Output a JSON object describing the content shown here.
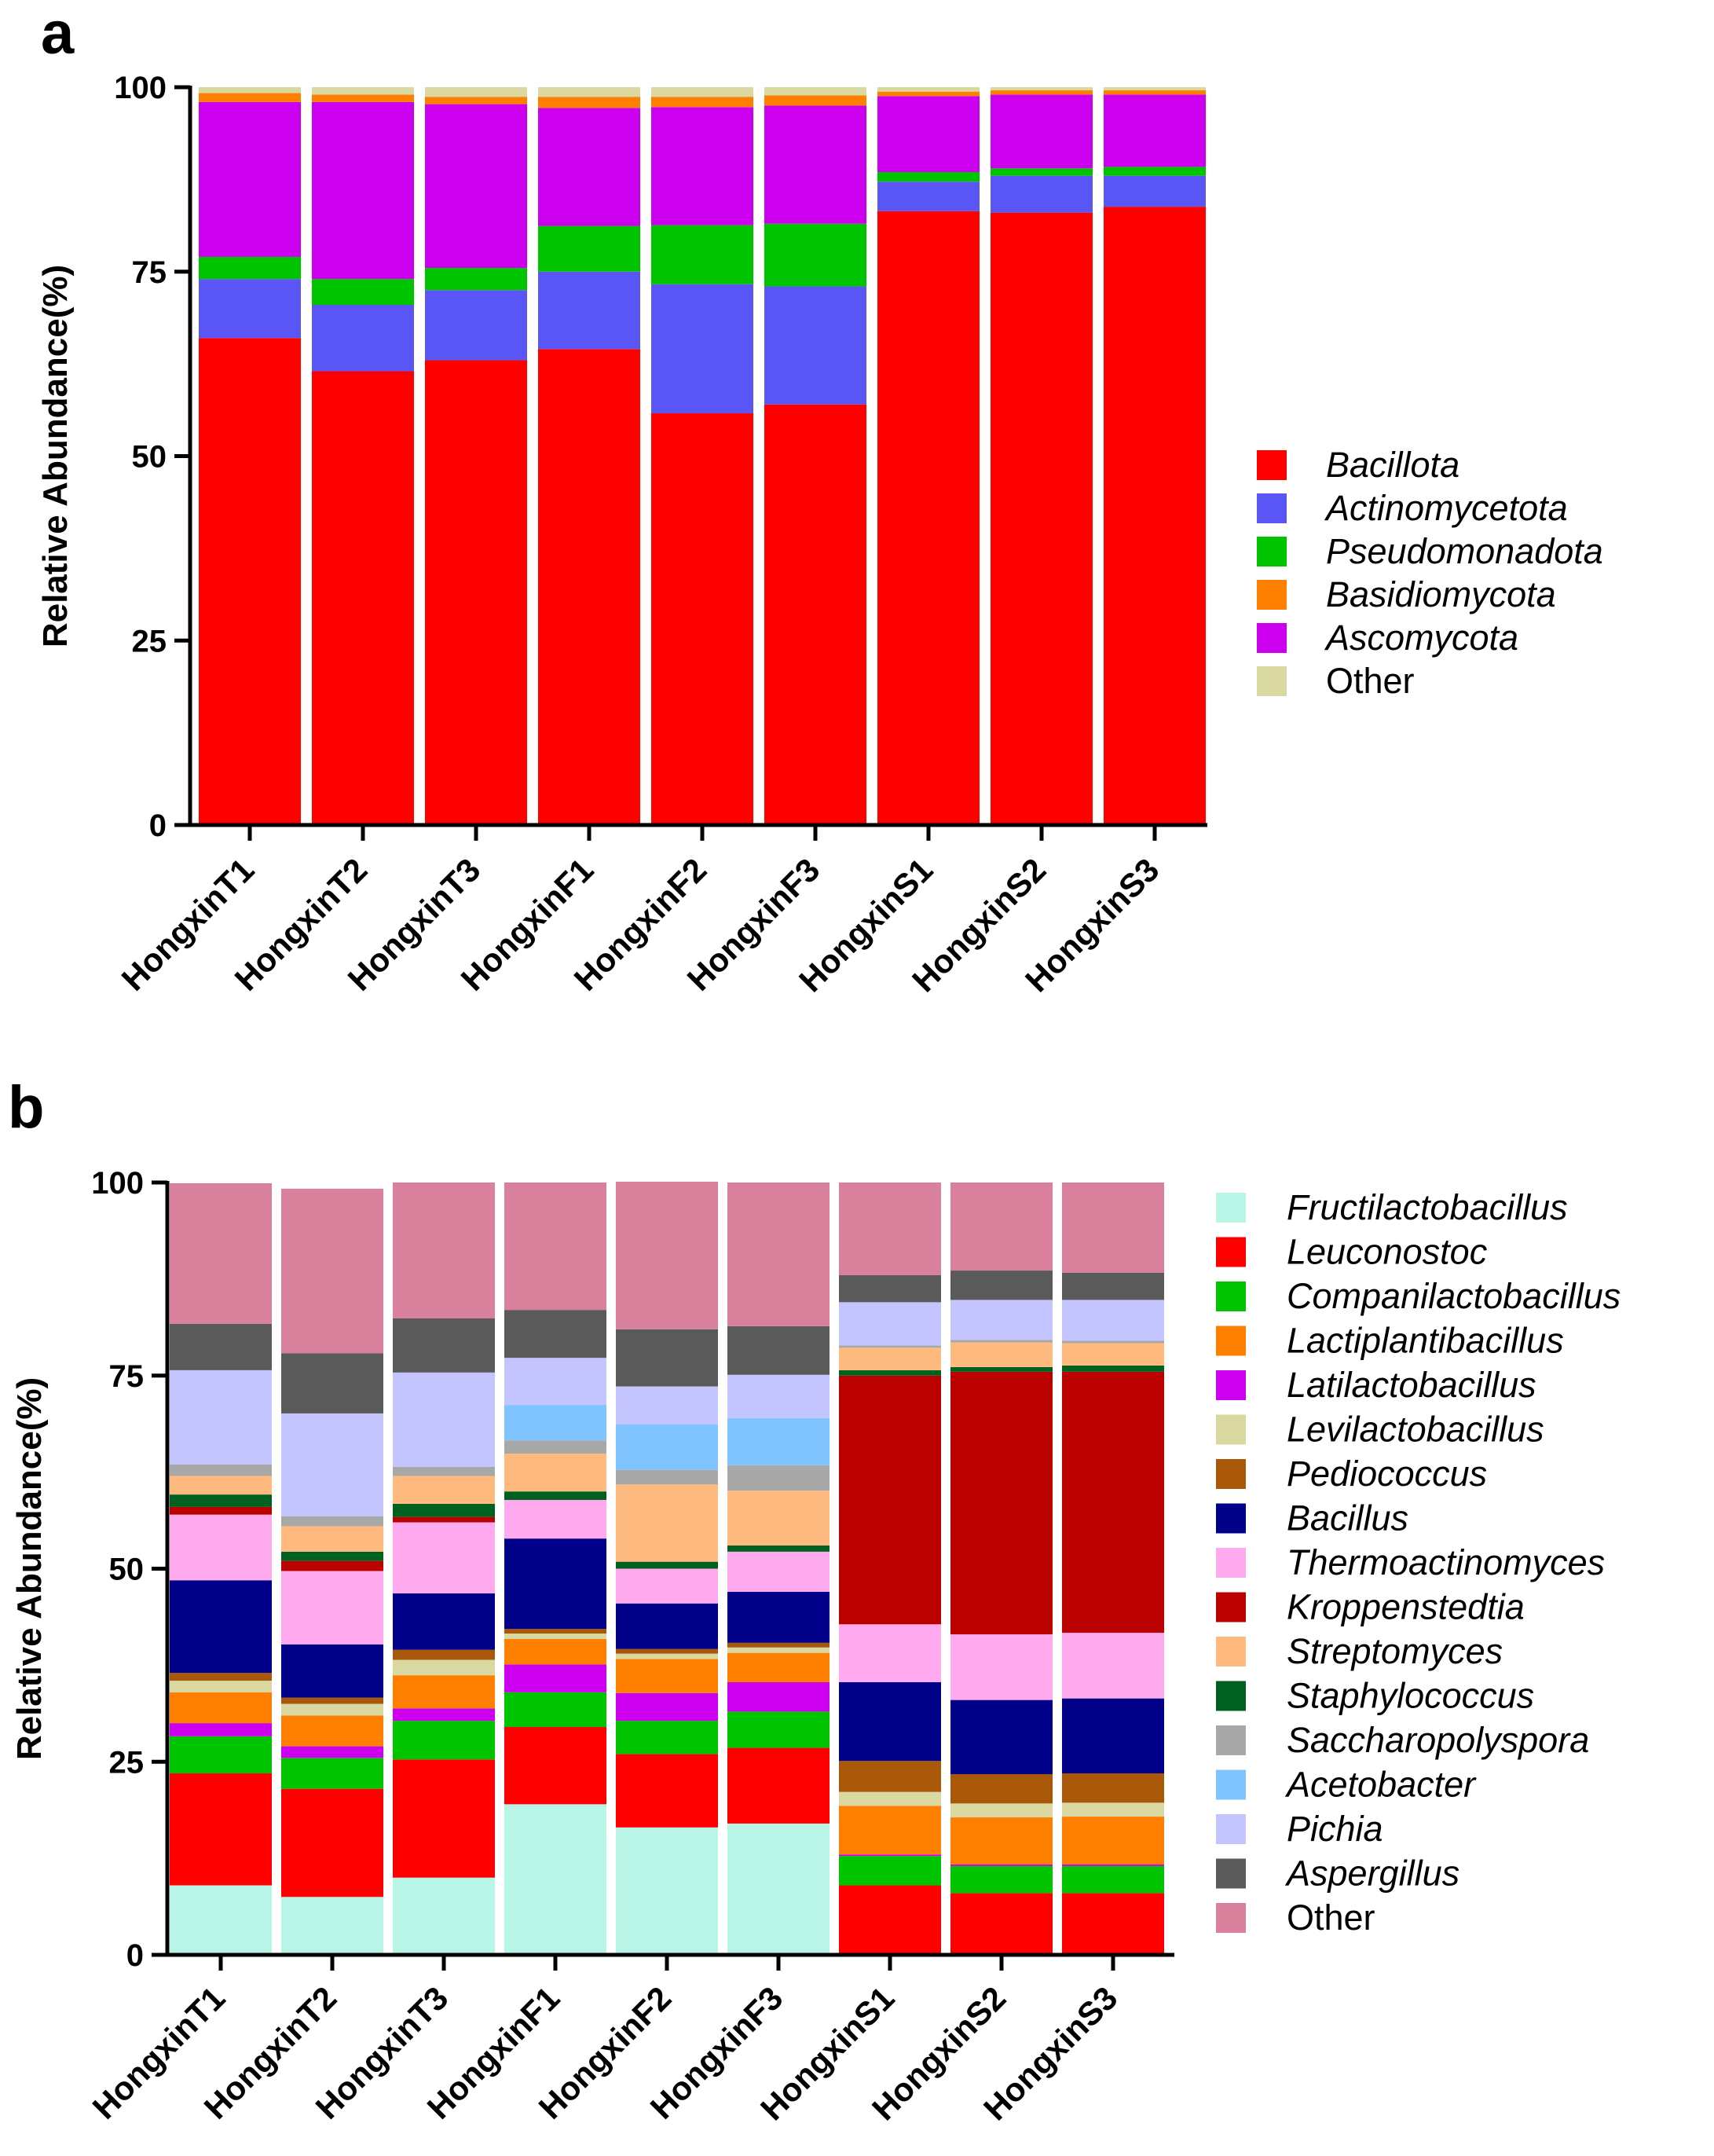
{
  "chart_data": [
    {
      "type": "bar",
      "stacked": true,
      "panel_label": "a",
      "title": "",
      "xlabel": "",
      "ylabel": "Relative Abundance(%)",
      "ylim": [
        0,
        100
      ],
      "yticks": [
        "0",
        "25",
        "50",
        "75",
        "100"
      ],
      "legend_position": "right",
      "categories": [
        "HongxinT1",
        "HongxinT2",
        "HongxinT3",
        "HongxinF1",
        "HongxinF2",
        "HongxinF3",
        "HongxinS1",
        "HongxinS2",
        "HongxinS3"
      ],
      "series": [
        {
          "name": "Bacillota",
          "color": "#ff0000",
          "italic": true,
          "values": [
            66,
            61.5,
            63,
            64.5,
            55.8,
            57,
            83.2,
            83,
            83.8
          ]
        },
        {
          "name": "Actinomycetota",
          "color": "#5a55f5",
          "italic": true,
          "values": [
            8,
            9,
            9.5,
            10.5,
            17.5,
            16,
            4,
            5,
            4.2
          ]
        },
        {
          "name": "Pseudomonadota",
          "color": "#00c400",
          "italic": true,
          "values": [
            3,
            3.5,
            3,
            6.2,
            8,
            8.5,
            1.3,
            1,
            1.2
          ]
        },
        {
          "name": "Ascomycota",
          "color": "#cc00ee",
          "italic": true,
          "values": [
            21,
            24,
            22.2,
            16,
            16,
            16,
            10.3,
            10,
            9.8
          ]
        },
        {
          "name": "Basidiomycota",
          "color": "#ff8000",
          "italic": true,
          "values": [
            1.2,
            1,
            1,
            1.5,
            1.4,
            1.4,
            0.6,
            0.6,
            0.6
          ]
        },
        {
          "name": "Other",
          "color": "#d8d8a0",
          "italic": false,
          "values": [
            0.8,
            1,
            1.3,
            1.3,
            1.3,
            1.1,
            0.6,
            0.4,
            0.4
          ]
        }
      ],
      "legend_order": [
        "Bacillota",
        "Actinomycetota",
        "Pseudomonadota",
        "Basidiomycota",
        "Ascomycota",
        "Other"
      ]
    },
    {
      "type": "bar",
      "stacked": true,
      "panel_label": "b",
      "title": "",
      "xlabel": "",
      "ylabel": "Relative Abundance(%)",
      "ylim": [
        0,
        100
      ],
      "yticks": [
        "0",
        "25",
        "50",
        "75",
        "100"
      ],
      "legend_position": "right",
      "categories": [
        "HongxinT1",
        "HongxinT2",
        "HongxinT3",
        "HongxinF1",
        "HongxinF2",
        "HongxinF3",
        "HongxinS1",
        "HongxinS2",
        "HongxinS3"
      ],
      "series": [
        {
          "name": "Fructilactobacillus",
          "color": "#b8f5e6",
          "italic": true,
          "values": [
            9,
            7.5,
            10,
            19.5,
            16.5,
            17,
            0,
            0,
            0
          ]
        },
        {
          "name": "Leuconostoc",
          "color": "#ff0000",
          "italic": true,
          "values": [
            14.5,
            14,
            15.3,
            10,
            9.5,
            9.8,
            9,
            8,
            8
          ]
        },
        {
          "name": "Companilactobacillus",
          "color": "#00c400",
          "italic": true,
          "values": [
            4.8,
            4,
            5,
            4.5,
            4.3,
            4.7,
            3.8,
            3.5,
            3.5
          ]
        },
        {
          "name": "Latilactobacillus",
          "color": "#cc00ee",
          "italic": true,
          "values": [
            1.7,
            1.5,
            1.6,
            3.6,
            3.6,
            3.8,
            0.2,
            0.2,
            0.2
          ]
        },
        {
          "name": "Lactiplantibacillus",
          "color": "#ff8000",
          "italic": true,
          "values": [
            4,
            4,
            4.3,
            3.3,
            4.4,
            3.8,
            6.3,
            6.1,
            6.2
          ]
        },
        {
          "name": "Levilactobacillus",
          "color": "#d8d8a0",
          "italic": true,
          "values": [
            1.5,
            1.5,
            2,
            0.7,
            0.7,
            0.7,
            1.8,
            1.8,
            1.8
          ]
        },
        {
          "name": "Pediococcus",
          "color": "#a85808",
          "italic": true,
          "values": [
            1,
            0.8,
            1.3,
            0.6,
            0.6,
            0.6,
            4,
            3.8,
            3.8
          ]
        },
        {
          "name": "Bacillus",
          "color": "#000088",
          "italic": true,
          "values": [
            12,
            6.9,
            7.3,
            11.7,
            5.9,
            6.6,
            10.2,
            9.6,
            9.7
          ]
        },
        {
          "name": "Thermoactinomyces",
          "color": "#ffaaee",
          "italic": true,
          "values": [
            8.5,
            9.5,
            9.2,
            5,
            4.5,
            5.2,
            7.5,
            8.5,
            8.5
          ]
        },
        {
          "name": "Kroppenstedtia",
          "color": "#bb0000",
          "italic": true,
          "values": [
            1,
            1.3,
            0.7,
            0,
            0,
            0,
            32.2,
            34,
            33.8
          ]
        },
        {
          "name": "Staphylococcus",
          "color": "#006020",
          "italic": true,
          "values": [
            1.6,
            1.2,
            1.7,
            1.1,
            0.9,
            0.8,
            0.7,
            0.6,
            0.8
          ]
        },
        {
          "name": "Streptomyces",
          "color": "#ffba80",
          "italic": true,
          "values": [
            2.4,
            3.3,
            3.6,
            4.9,
            10,
            7.1,
            2.9,
            3.2,
            2.9
          ]
        },
        {
          "name": "Saccharopolyspora",
          "color": "#a8a8a8",
          "italic": true,
          "values": [
            1.5,
            1.3,
            1.2,
            1.7,
            1.9,
            3.3,
            0.3,
            0.3,
            0.3
          ]
        },
        {
          "name": "Acetobacter",
          "color": "#80c4ff",
          "italic": true,
          "values": [
            0,
            0,
            0,
            4.6,
            5.9,
            6.1,
            0,
            0,
            0
          ]
        },
        {
          "name": "Pichia",
          "color": "#c4c4ff",
          "italic": true,
          "values": [
            12.2,
            13.3,
            12.2,
            6.1,
            4.9,
            5.6,
            5.6,
            5.2,
            5.3
          ]
        },
        {
          "name": "Aspergillus",
          "color": "#5a5a5a",
          "italic": true,
          "values": [
            6,
            7.8,
            7,
            6.2,
            7.4,
            6.3,
            3.5,
            3.8,
            3.5
          ]
        },
        {
          "name": "Other",
          "color": "#d8809c",
          "italic": false,
          "values": [
            18.2,
            21.3,
            17.6,
            16.5,
            19.1,
            18.6,
            12,
            11.4,
            11.7
          ]
        }
      ],
      "legend_order": [
        "Fructilactobacillus",
        "Leuconostoc",
        "Companilactobacillus",
        "Lactiplantibacillus",
        "Latilactobacillus",
        "Levilactobacillus",
        "Pediococcus",
        "Bacillus",
        "Thermoactinomyces",
        "Kroppenstedtia",
        "Streptomyces",
        "Staphylococcus",
        "Saccharopolyspora",
        "Acetobacter",
        "Pichia",
        "Aspergillus",
        "Other"
      ]
    }
  ]
}
